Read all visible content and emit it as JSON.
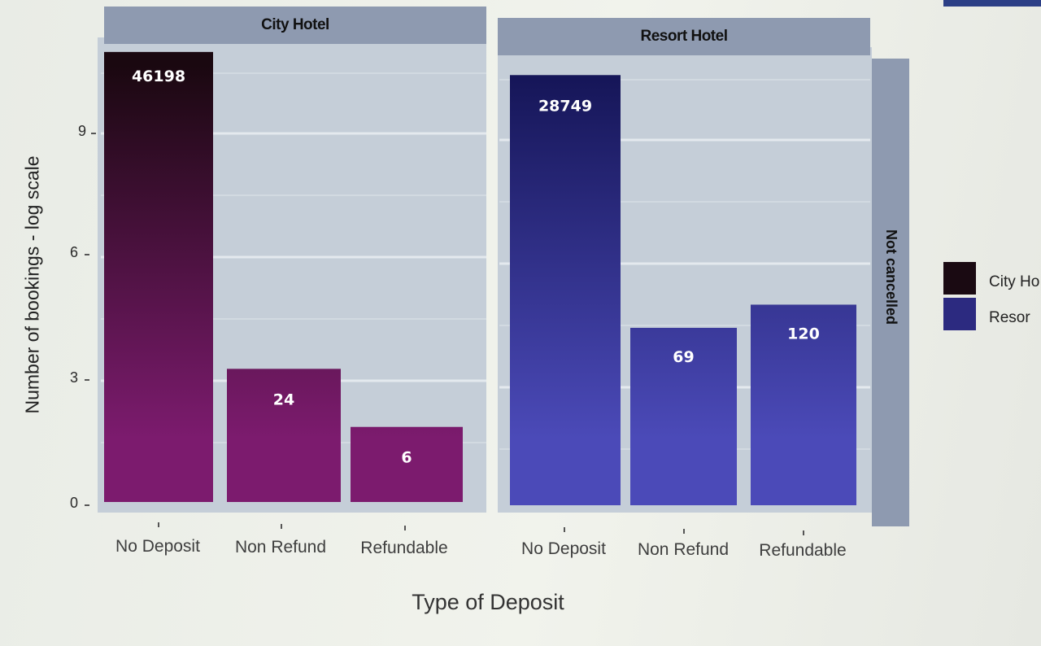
{
  "chart_data": {
    "type": "bar",
    "facets": {
      "columns": [
        "City Hotel",
        "Resort Hotel"
      ],
      "row": "Not cancelled"
    },
    "categories": [
      "No Deposit",
      "Non Refund",
      "Refundable"
    ],
    "series": [
      {
        "name": "City Hotel",
        "color": "#7a1a6a",
        "values": [
          46198,
          24,
          6
        ]
      },
      {
        "name": "Resort Hotel",
        "color": "#3a38a6",
        "values": [
          28749,
          69,
          120
        ]
      }
    ],
    "y_scale": "log",
    "ylim": [
      0,
      11
    ],
    "yticks": [
      0,
      3,
      6,
      9
    ],
    "xlabel": "Type of Deposit",
    "ylabel": "Number of bookings - log scale",
    "legend": {
      "position": "right",
      "labels": [
        "City Ho",
        "Resor"
      ]
    },
    "grid": true
  }
}
